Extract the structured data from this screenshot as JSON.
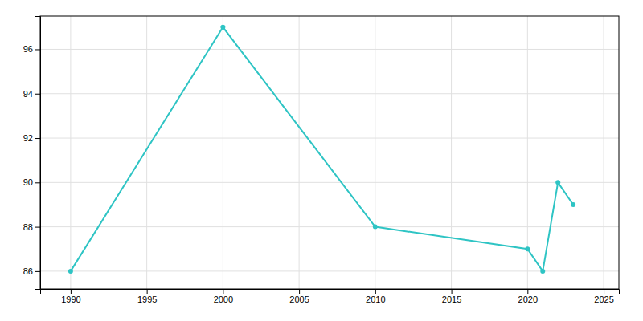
{
  "chart_data": {
    "type": "line",
    "x": [
      1990,
      2000,
      2010,
      2020,
      2021,
      2022,
      2023
    ],
    "values": [
      86,
      97,
      88,
      87,
      86,
      90,
      89
    ],
    "color": "#2EC4C4",
    "marker": "circle",
    "xlim": [
      1988,
      2026
    ],
    "ylim": [
      85.2,
      97.5
    ],
    "xticks": [
      1990,
      1995,
      2000,
      2005,
      2010,
      2015,
      2020,
      2025
    ],
    "yticks": [
      86,
      88,
      90,
      92,
      94,
      96
    ],
    "grid": true
  }
}
